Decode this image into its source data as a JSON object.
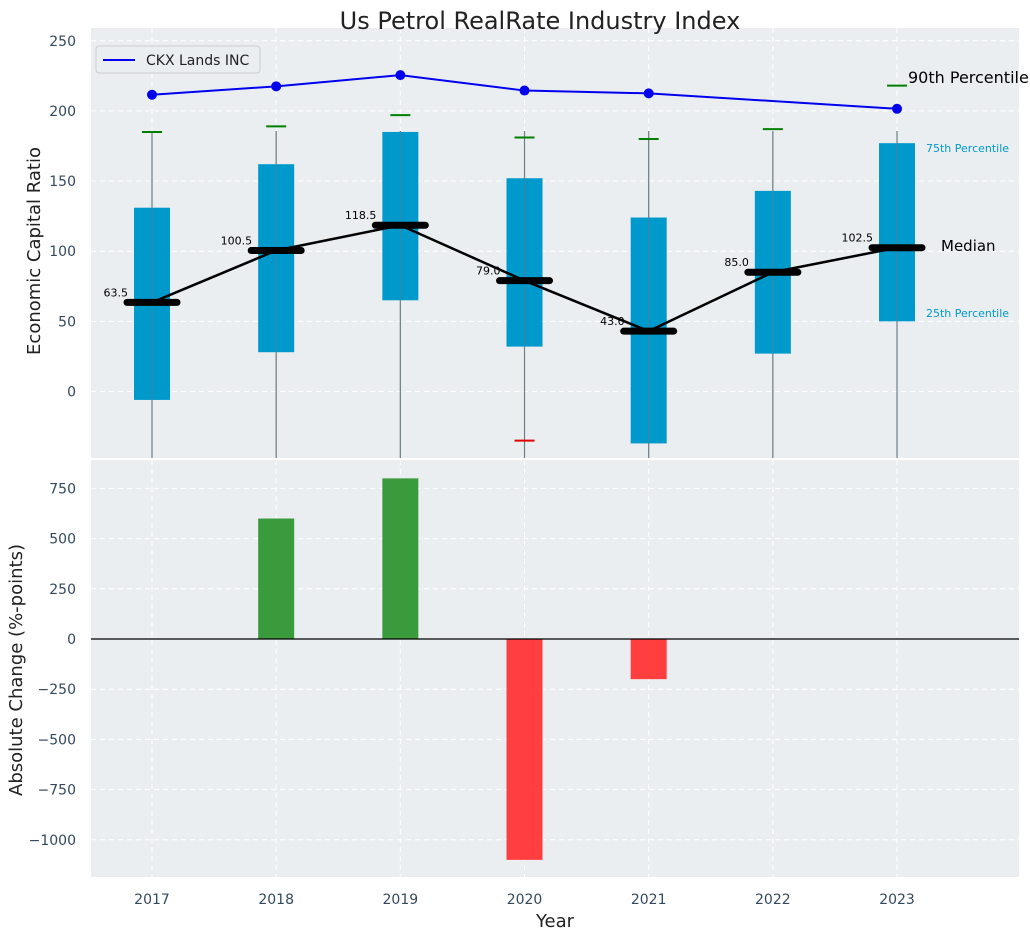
{
  "colors": {
    "panel_bg": "#eaeef1",
    "grid": "#ffffff",
    "box_fill": "#0099cc",
    "median_color": "#000000",
    "company_line": "#0000ee",
    "whisker_line": "#888888",
    "cap_high": "#008000",
    "cap_low": "#e00000",
    "bar_positive": "#3a9b3c",
    "bar_negative": "#ff3f3f",
    "label_blue": "#0099cc",
    "tick_text": "#34495e"
  },
  "chart_data": [
    {
      "type": "box",
      "title": "Us Petrol RealRate Industry Index",
      "ylabel": "Economic Capital Ratio",
      "ylim": [
        -48,
        250
      ],
      "yticks": [
        0,
        50,
        100,
        150,
        200,
        250
      ],
      "categories": [
        "2017",
        "2018",
        "2019",
        "2020",
        "2021",
        "2022",
        "2023"
      ],
      "series": [
        {
          "name": "p25",
          "values": [
            -6,
            28,
            65,
            32,
            -37,
            27,
            50
          ]
        },
        {
          "name": "median",
          "values": [
            63.5,
            100.5,
            118.5,
            79.0,
            43.0,
            85.0,
            102.5
          ]
        },
        {
          "name": "p75",
          "values": [
            131,
            162,
            185,
            152,
            124,
            143,
            177
          ]
        },
        {
          "name": "p90",
          "values": [
            185,
            189,
            197,
            181,
            180,
            187,
            218
          ]
        },
        {
          "name": "p10",
          "values": [
            null,
            null,
            null,
            -35,
            null,
            null,
            null
          ]
        },
        {
          "name": "CKX Lands INC",
          "values": [
            211.5,
            217.5,
            225.5,
            214.5,
            212.5,
            null,
            201.5
          ]
        }
      ],
      "median_labels": [
        "63.5",
        "100.5",
        "118.5",
        "79.0",
        "43.0",
        "85.0",
        "102.5"
      ],
      "legend": {
        "entries": [
          "CKX Lands INC"
        ],
        "position": "top-left"
      },
      "annotations": {
        "p90": "90th Percentile",
        "p75": "75th Percentile",
        "median": "Median",
        "p25": "25th Percentile"
      }
    },
    {
      "type": "bar",
      "ylabel": "Absolute Change (%-points)",
      "xlabel": "Year",
      "ylim": [
        -1190,
        900
      ],
      "yticks": [
        -1000,
        -750,
        -500,
        -250,
        0,
        250,
        500,
        750
      ],
      "categories": [
        "2017",
        "2018",
        "2019",
        "2020",
        "2021",
        "2022",
        "2023"
      ],
      "values": [
        0,
        600,
        800,
        -1100,
        -200,
        0,
        0
      ]
    }
  ]
}
